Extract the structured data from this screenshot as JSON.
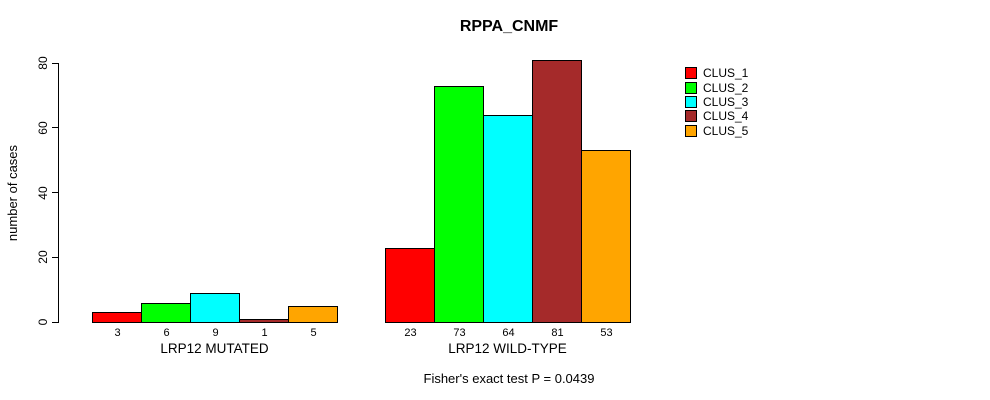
{
  "chart_data": {
    "type": "bar",
    "title": "RPPA_CNMF",
    "ylabel": "number of cases",
    "ylim": [
      0,
      80
    ],
    "yticks": [
      0,
      20,
      40,
      60,
      80
    ],
    "grid": false,
    "legend_position": "right",
    "categories": [
      "LRP12 MUTATED",
      "LRP12 WILD-TYPE"
    ],
    "series": [
      {
        "name": "CLUS_1",
        "color": "#FF0000",
        "values": [
          3,
          23
        ]
      },
      {
        "name": "CLUS_2",
        "color": "#00FF00",
        "values": [
          6,
          73
        ]
      },
      {
        "name": "CLUS_3",
        "color": "#00FFFF",
        "values": [
          9,
          64
        ]
      },
      {
        "name": "CLUS_4",
        "color": "#A52A2A",
        "values": [
          1,
          81
        ]
      },
      {
        "name": "CLUS_5",
        "color": "#FFA500",
        "values": [
          5,
          53
        ]
      }
    ],
    "bar_value_labels": [
      [
        3,
        6,
        9,
        1,
        5
      ],
      [
        23,
        73,
        64,
        81,
        53
      ]
    ],
    "annotation": "Fisher's exact test P = 0.0439"
  }
}
